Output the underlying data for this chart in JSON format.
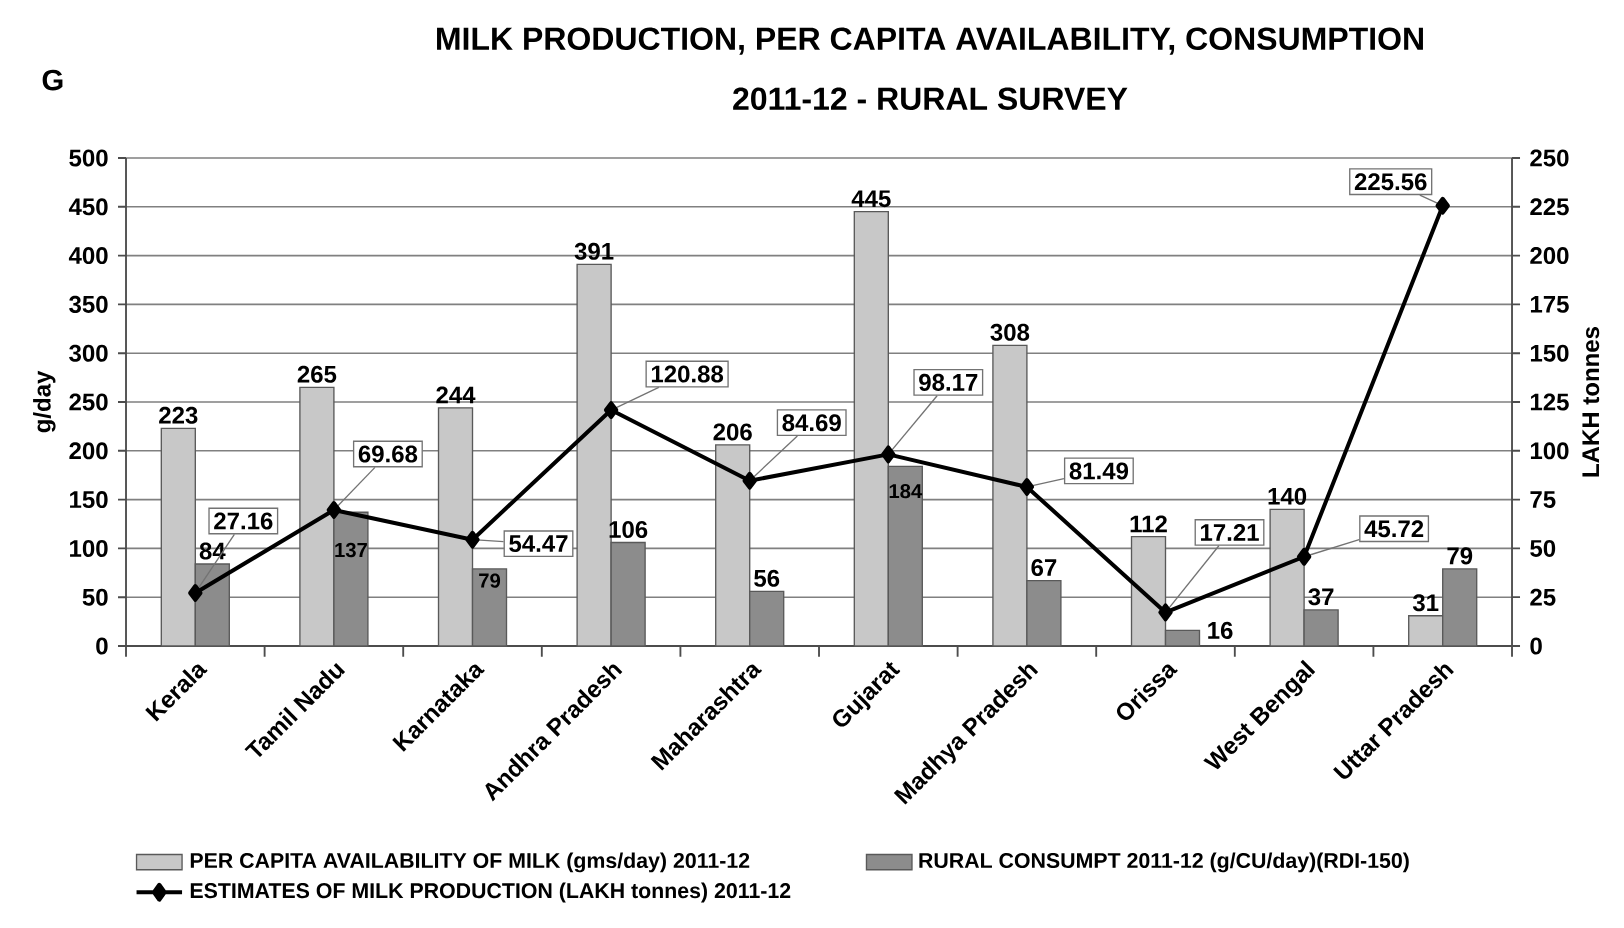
{
  "chart_data": {
    "type": "bar",
    "title": "MILK PRODUCTION, PER CAPITA AVAILABILITY, CONSUMPTION 2011-12 - RURAL SURVEY",
    "ylabel": "g/day",
    "y2label": "LAKH tonnes",
    "annotations": [
      "G"
    ],
    "categories": [
      "Kerala",
      "Tamil Nadu",
      "Karnataka",
      "Andhra Pradesh",
      "Maharashtra",
      "Gujarat",
      "Madhya Pradesh",
      "Orissa",
      "West Bengal",
      "Uttar Pradesh"
    ],
    "series": [
      {
        "name": "PER CAPITA AVAILABILITY OF MILK (gms/day) 2011-12",
        "color": "#c8c8c8",
        "values": [
          223,
          265,
          244,
          391,
          206,
          445,
          308,
          112,
          140,
          31
        ]
      },
      {
        "name": "RURAL CONSUMPT 2011-12 (g/CU/day)(RDI-150)",
        "color": "#8c8c8c",
        "values": [
          84,
          137,
          79,
          106,
          56,
          184,
          67,
          16,
          37,
          79
        ]
      },
      {
        "name": "ESTIMATES OF MILK PRODUCTION (LAKH tonnes) 2011-12",
        "type": "line",
        "axis": "y2",
        "marker": "diamond",
        "color": "#000000",
        "values": [
          27.16,
          69.68,
          54.47,
          120.88,
          84.69,
          98.17,
          81.49,
          17.21,
          45.72,
          225.56
        ]
      }
    ],
    "ylim": [
      0,
      500
    ],
    "yticks": [
      0,
      50,
      100,
      150,
      200,
      250,
      300,
      350,
      400,
      450,
      500
    ],
    "y2lim": [
      0,
      250
    ],
    "y2ticks": [
      0,
      25,
      50,
      75,
      100,
      125,
      150,
      175,
      200,
      225,
      250
    ],
    "grid": "y",
    "legend": "bottom",
    "data_labels": true
  }
}
